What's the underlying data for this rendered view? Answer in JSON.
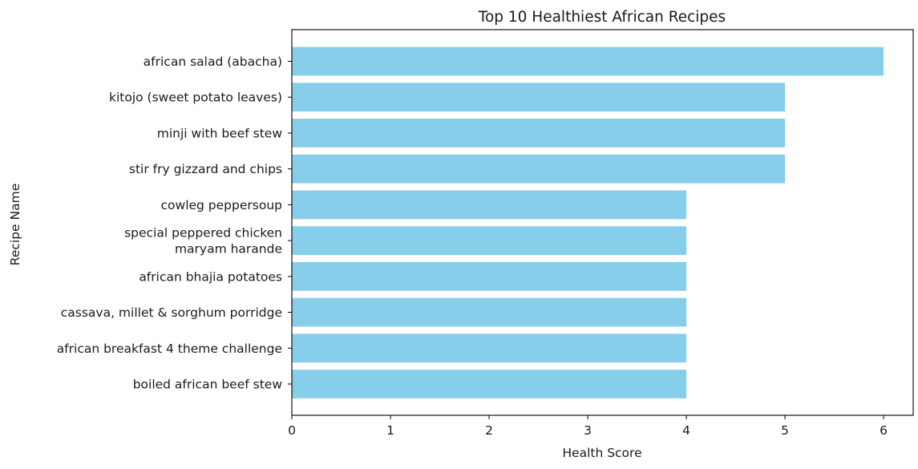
{
  "chart_data": {
    "type": "bar",
    "orientation": "horizontal",
    "title": "Top 10 Healthiest African Recipes",
    "xlabel": "Health Score",
    "ylabel": "Recipe Name",
    "xlim": [
      0,
      6.3
    ],
    "xticks": [
      0,
      1,
      2,
      3,
      4,
      5,
      6
    ],
    "categories": [
      "african salad (abacha)",
      "kitojo (sweet potato leaves)",
      "minji with beef stew",
      "stir fry gizzard and chips",
      "cowleg peppersoup",
      "special peppered chicken\nmaryam harande",
      "african bhajia potatoes",
      "cassava, millet & sorghum porridge",
      "african breakfast 4 theme challenge",
      "boiled african beef stew"
    ],
    "values": [
      6,
      5,
      5,
      5,
      4,
      4,
      4,
      4,
      4,
      4
    ],
    "bar_color": "#87ceeb",
    "grid": false,
    "legend": "none"
  }
}
